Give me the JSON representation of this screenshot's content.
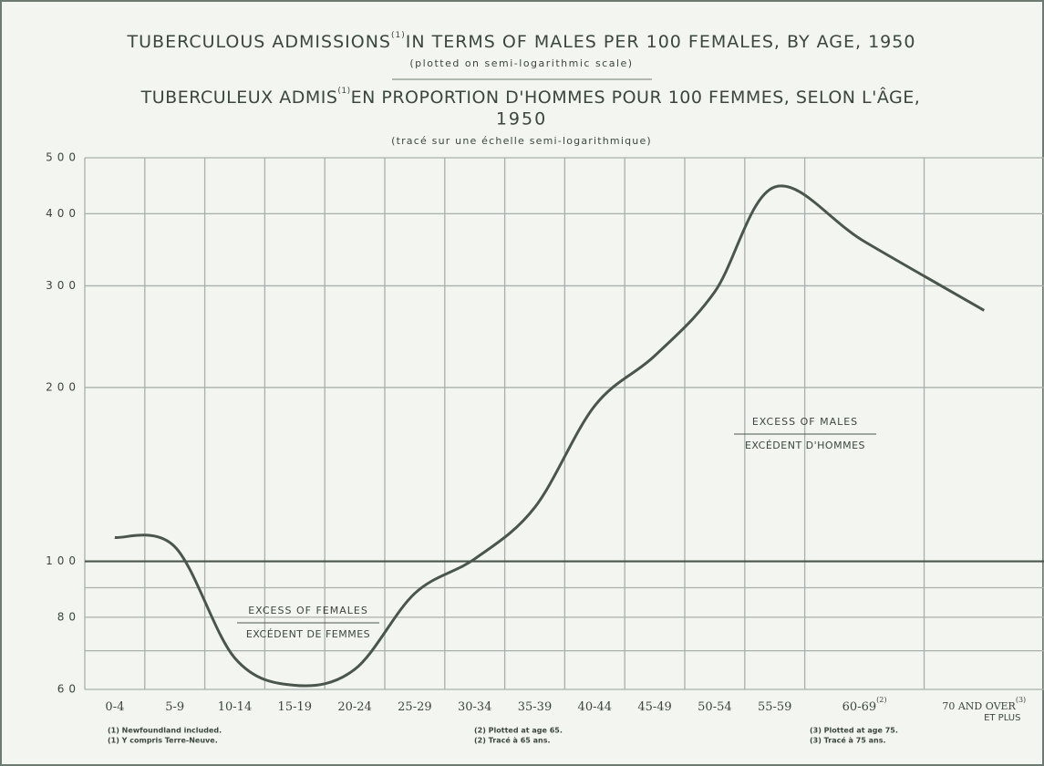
{
  "chart_data": {
    "type": "line",
    "title": [
      "TUBERCULOUS ADMISSIONS",
      "(1)",
      "IN TERMS OF MALES PER 100 FEMALES, BY AGE, 1950"
    ],
    "subtitle": "(plotted on semi-logarithmic scale)",
    "title_fr": [
      "TUBERCULEUX ADMIS",
      "(1)",
      "EN PROPORTION D'HOMMES POUR 100 FEMMES, SELON L'ÂGE,",
      "1950"
    ],
    "subtitle_fr": "(tracé sur une échelle semi-logarithmique)",
    "categories": [
      "0-4",
      "5-9",
      "10-14",
      "15-19",
      "20-24",
      "25-29",
      "30-34",
      "35-39",
      "40-44",
      "45-49",
      "50-54",
      "55-59",
      "60-69",
      "70 AND OVER"
    ],
    "category_notes": {
      "12": "(2)",
      "13": "(3)"
    },
    "last_category_line2": "ET PLUS",
    "series": [
      {
        "name": "Males per 100 females",
        "color": "#4a564c",
        "values": [
          110,
          106,
          68,
          61,
          65,
          88,
          101,
          124,
          186,
          227,
          293,
          445,
          358,
          272
        ]
      }
    ],
    "ylim": [
      60,
      500
    ],
    "yticks": [
      60,
      80,
      100,
      200,
      300,
      400,
      500
    ],
    "y_minor_gridlines": [
      70,
      90
    ],
    "log_scale": true,
    "grid": true,
    "reference_line": 100,
    "annotations": [
      {
        "lines": [
          "EXCESS OF MALES",
          "EXCÉDENT D'HOMMES"
        ]
      },
      {
        "lines": [
          "EXCESS OF FEMALES",
          "EXCÉDENT DE FEMMES"
        ]
      }
    ],
    "footnotes": [
      [
        "(1) Newfoundland included.",
        "(1) Y compris Terre-Neuve."
      ],
      [
        "(2) Plotted at age 65.",
        "(2) Tracé à 65 ans."
      ],
      [
        "(3) Plotted at age 75.",
        "(3) Tracé à 75 ans."
      ]
    ]
  }
}
